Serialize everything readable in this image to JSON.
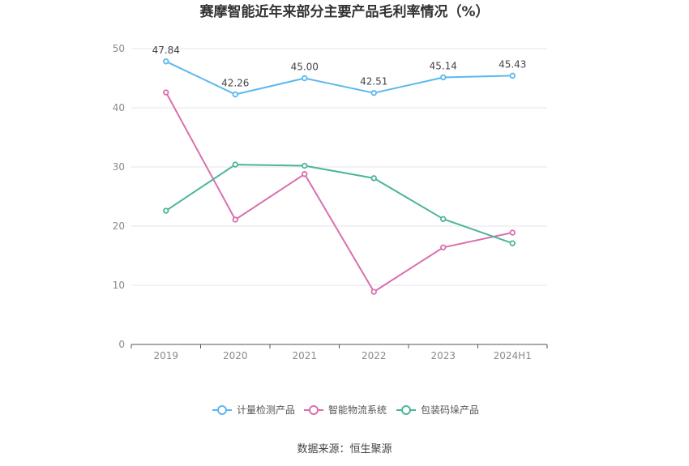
{
  "chart_data": {
    "type": "line",
    "title": "赛摩智能近年来部分主要产品毛利率情况（%）",
    "categories": [
      "2019",
      "2020",
      "2021",
      "2022",
      "2023",
      "2024H1"
    ],
    "ylim": [
      0,
      50
    ],
    "yticks": [
      0,
      10,
      20,
      30,
      40,
      50
    ],
    "grid": true,
    "legend_position": "bottom-center",
    "series": [
      {
        "name": "计量检测产品",
        "color": "#5bb8ec",
        "values": [
          47.84,
          42.26,
          45.0,
          42.51,
          45.14,
          45.43
        ],
        "labels": [
          "47.84",
          "42.26",
          "45.00",
          "42.51",
          "45.14",
          "45.43"
        ]
      },
      {
        "name": "智能物流系统",
        "color": "#d96fae",
        "values": [
          42.6,
          21.1,
          28.8,
          8.9,
          16.4,
          18.9
        ]
      },
      {
        "name": "包装码垛产品",
        "color": "#4bb59b",
        "values": [
          22.6,
          30.4,
          30.2,
          28.1,
          21.2,
          17.1
        ]
      }
    ]
  },
  "source": "数据来源：恒生聚源"
}
